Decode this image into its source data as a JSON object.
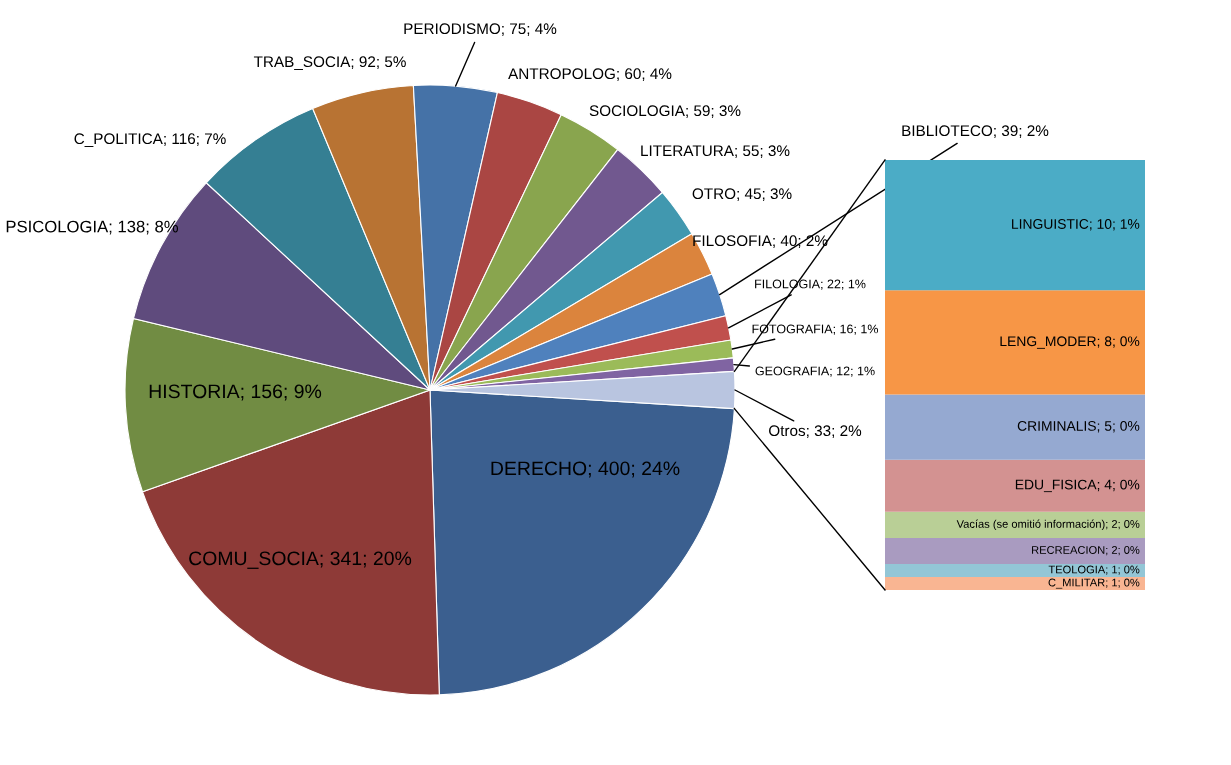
{
  "chart_data": [
    {
      "type": "pie",
      "categories": [
        "DERECHO",
        "COMU_SOCIA",
        "HISTORIA",
        "PSICOLOGIA",
        "C_POLITICA",
        "TRAB_SOCIA",
        "PERIODISMO",
        "ANTROPOLOG",
        "SOCIOLOGIA",
        "LITERATURA",
        "OTRO",
        "FILOSOFIA",
        "BIBLIOTECO",
        "FILOLOGIA",
        "FOTOGRAFIA",
        "GEOGRAFIA",
        "Otros"
      ],
      "values": [
        400,
        341,
        156,
        138,
        116,
        92,
        75,
        60,
        59,
        55,
        45,
        40,
        39,
        22,
        16,
        12,
        33
      ],
      "value_labels": [
        "400; 24%",
        "341; 20%",
        "156; 9%",
        "138; 8%",
        "116; 7%",
        "92; 5%",
        "75; 4%",
        "60; 4%",
        "59; 3%",
        "55; 3%",
        "45; 3%",
        "40; 2%",
        "39; 2%",
        "22; 1%",
        "16; 1%",
        "12; 1%",
        "33; 2%"
      ],
      "colors": [
        "#3b5f8f",
        "#8e3a37",
        "#718c43",
        "#5f4b7d",
        "#357f93",
        "#b87333",
        "#4572a7",
        "#aa4643",
        "#89a54e",
        "#71588f",
        "#4198af",
        "#db843d",
        "#4f81bd",
        "#c0504d",
        "#9bbb59",
        "#8064a2",
        "#b9c5e0"
      ]
    },
    {
      "type": "bar",
      "stacked": true,
      "categories": [
        null
      ],
      "series": [
        {
          "color": "#f9b592",
          "values": [
            1
          ],
          "value_labels": [
            "C_MILITAR; 1; 0%"
          ]
        },
        {
          "color": "#93c6d6",
          "values": [
            1
          ],
          "value_labels": [
            "TEOLOGIA; 1; 0%"
          ]
        },
        {
          "color": "#a99bc0",
          "values": [
            2
          ],
          "value_labels": [
            "RECREACION; 2; 0%"
          ]
        },
        {
          "color": "#b9cf96",
          "values": [
            2
          ],
          "value_labels": [
            "Vacías (se omitió información); 2; 0%"
          ]
        },
        {
          "color": "#d39291",
          "values": [
            4
          ],
          "value_labels": [
            "EDU_FISICA; 4; 0%"
          ]
        },
        {
          "color": "#95a9d1",
          "values": [
            5
          ],
          "value_labels": [
            "CRIMINALIS; 5; 0%"
          ]
        },
        {
          "color": "#f79646",
          "values": [
            8
          ],
          "value_labels": [
            "LENG_MODER; 8; 0%"
          ]
        },
        {
          "color": "#4bacc6",
          "values": [
            10
          ],
          "value_labels": [
            "LINGUISTIC; 10; 1%"
          ]
        }
      ]
    }
  ]
}
